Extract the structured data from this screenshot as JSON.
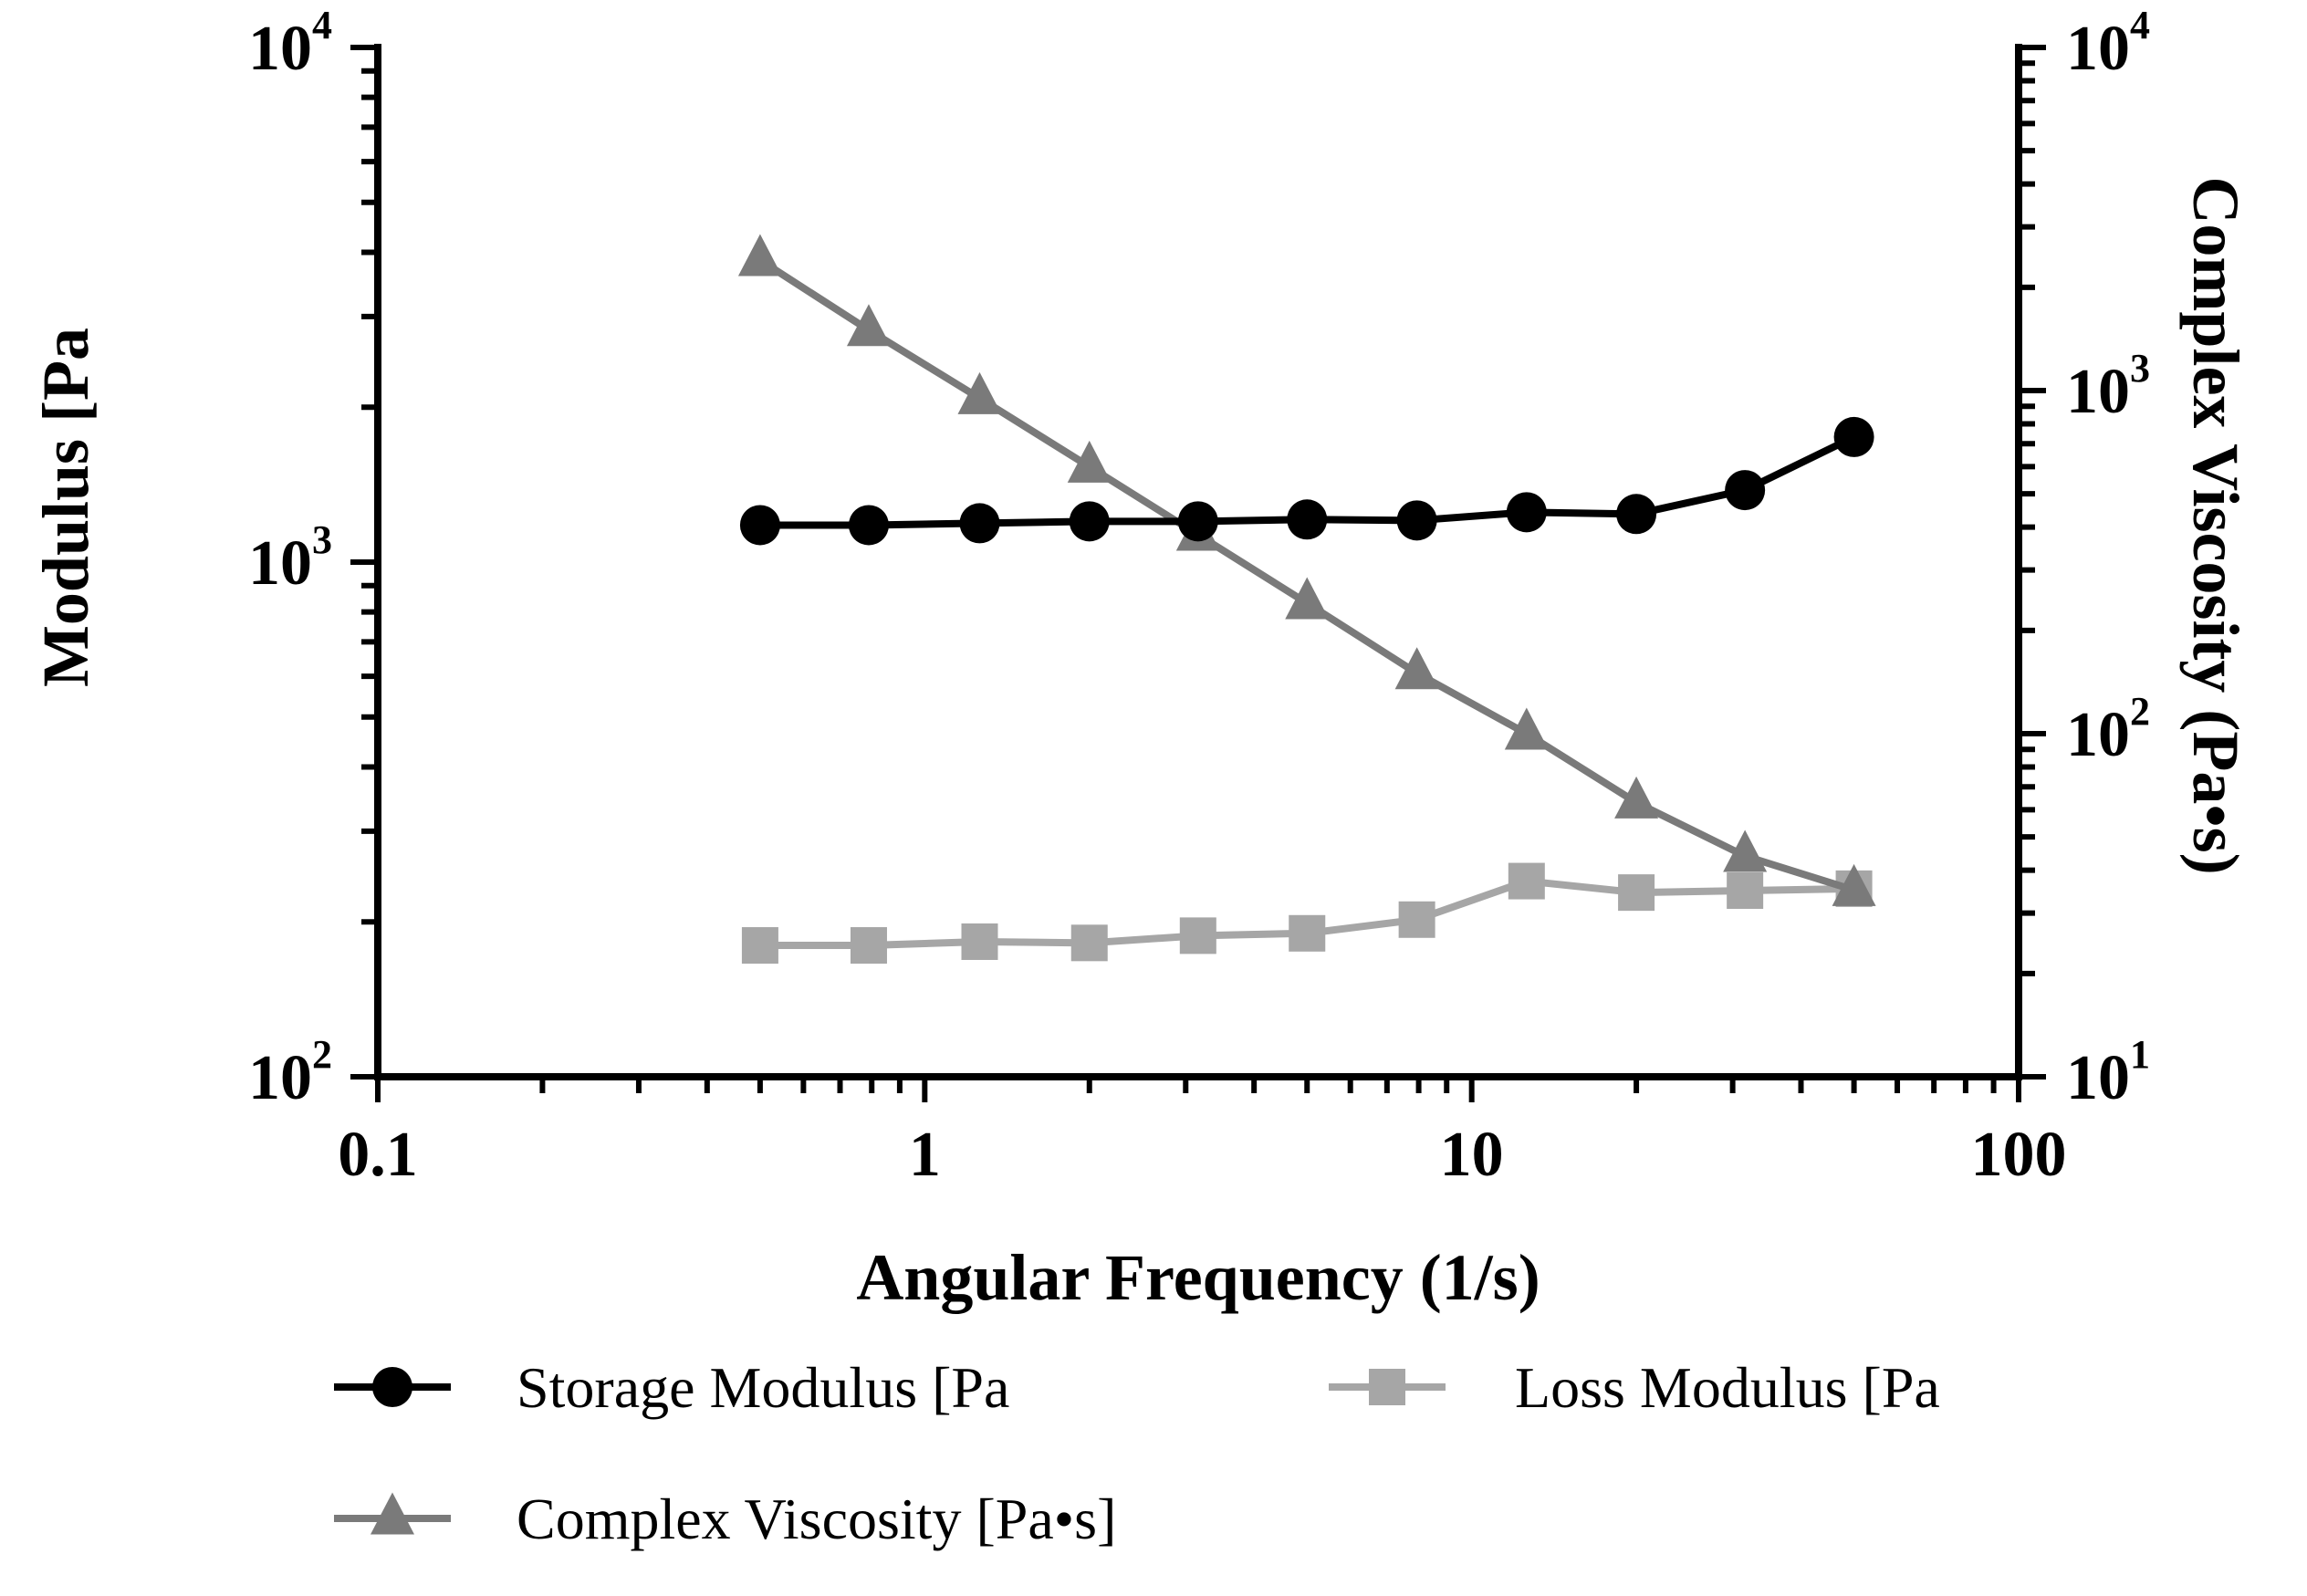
{
  "chart_data": {
    "type": "line",
    "title": "",
    "xlabel": "Angular Frequency (1/s)",
    "ylabel": "Modulus [Pa",
    "y2label": "Complex Viscosity (Pa•s)",
    "xscale": "log",
    "yscale": "log",
    "y2scale": "log",
    "xlim": [
      0.1,
      100
    ],
    "ylim": [
      100,
      10000
    ],
    "y2lim": [
      10,
      10000
    ],
    "x_ticks": [
      {
        "value": 0.1,
        "label": "0.1"
      },
      {
        "value": 1,
        "label": "1"
      },
      {
        "value": 10,
        "label": "10"
      },
      {
        "value": 100,
        "label": "100"
      }
    ],
    "y_ticks": [
      {
        "value": 100,
        "base": "10",
        "exp": "2"
      },
      {
        "value": 1000,
        "base": "10",
        "exp": "3"
      },
      {
        "value": 10000,
        "base": "10",
        "exp": "4"
      }
    ],
    "y2_ticks": [
      {
        "value": 10,
        "base": "10",
        "exp": "1"
      },
      {
        "value": 100,
        "base": "10",
        "exp": "2"
      },
      {
        "value": 1000,
        "base": "10",
        "exp": "3"
      },
      {
        "value": 10000,
        "base": "10",
        "exp": "4"
      }
    ],
    "x": [
      0.5,
      0.79,
      1.26,
      2.0,
      3.16,
      5.0,
      7.94,
      12.6,
      20.0,
      31.6,
      50.0
    ],
    "series": [
      {
        "name": "Storage Modulus [Pa",
        "axis": "left",
        "marker": "circle",
        "color": "#000000",
        "values": [
          1180,
          1180,
          1190,
          1200,
          1200,
          1210,
          1205,
          1250,
          1240,
          1380,
          1750
        ]
      },
      {
        "name": "Loss Modulus [Pa",
        "axis": "left",
        "marker": "square",
        "color": "#a6a6a6",
        "values": [
          180,
          180,
          183,
          182,
          188,
          190,
          202,
          240,
          228,
          230,
          232
        ]
      },
      {
        "name": "Complex Viscosity [Pa•s]",
        "axis": "right",
        "marker": "triangle",
        "color": "#7a7a7a",
        "values": [
          2400,
          1500,
          950,
          600,
          380,
          240,
          150,
          100,
          63,
          44,
          35
        ]
      }
    ],
    "legend": {
      "position": "bottom",
      "items": [
        {
          "label": "Storage Modulus [Pa",
          "marker": "circle",
          "color": "#000000"
        },
        {
          "label": "Loss Modulus [Pa",
          "marker": "square",
          "color": "#a6a6a6"
        },
        {
          "label": "Complex Viscosity [Pa•s]",
          "marker": "triangle",
          "color": "#7a7a7a"
        }
      ]
    }
  }
}
